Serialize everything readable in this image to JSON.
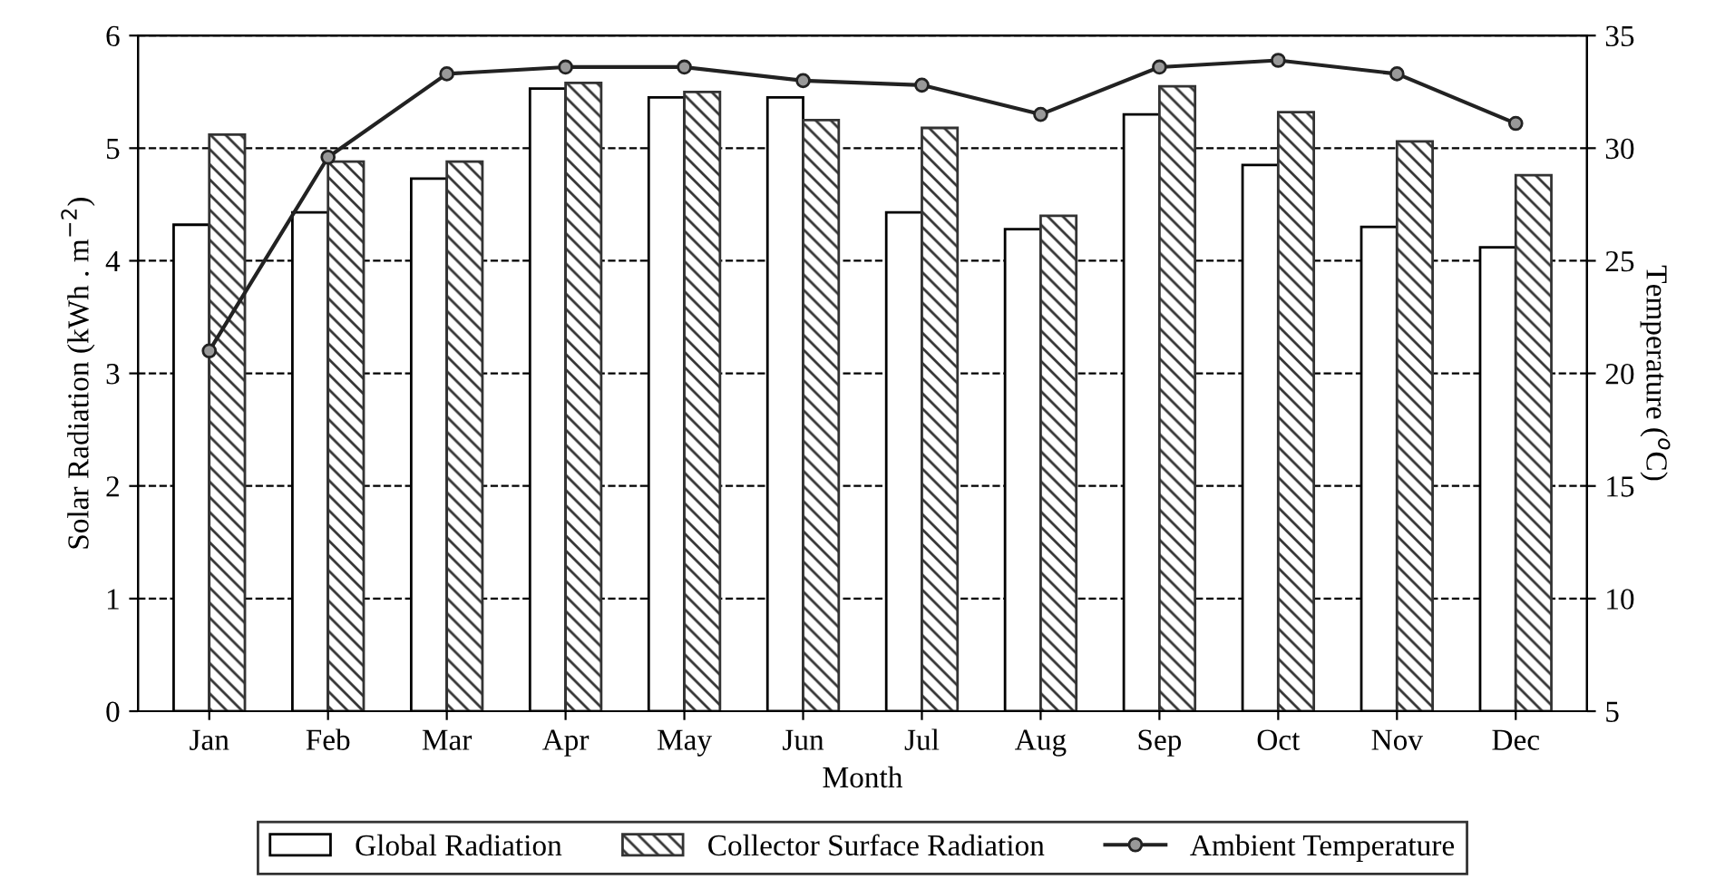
{
  "chart_data": {
    "type": "bar",
    "xlabel": "Month",
    "ylabel": "Solar Radiation (kWh . m$^{−2}$)",
    "y2label": "Temperature ($^{o}$C)",
    "categories": [
      "Jan",
      "Feb",
      "Mar",
      "Apr",
      "May",
      "Jun",
      "Jul",
      "Aug",
      "Sep",
      "Oct",
      "Nov",
      "Dec"
    ],
    "series": [
      {
        "name": "Global Radiation",
        "color": "#ffffff",
        "values": [
          4.32,
          4.43,
          4.73,
          5.53,
          5.45,
          5.45,
          4.43,
          4.28,
          5.3,
          4.85,
          4.3,
          4.12
        ]
      },
      {
        "name": "Collector Surface Radiation",
        "color": "#333333",
        "values": [
          5.12,
          4.88,
          4.88,
          5.58,
          5.5,
          5.25,
          5.18,
          4.4,
          5.55,
          5.32,
          5.06,
          4.76
        ]
      },
      {
        "name": "Ambient Temperature",
        "type": "line",
        "axis": "y2",
        "color": "#222222",
        "marker": "circle",
        "values": [
          21,
          29.6,
          33.3,
          33.6,
          33.6,
          33.0,
          32.8,
          31.5,
          33.6,
          33.9,
          33.3,
          31.1
        ]
      }
    ],
    "ylim": [
      0,
      6
    ],
    "yticks": [
      0,
      1,
      2,
      3,
      4,
      5,
      6
    ],
    "y2lim": [
      5,
      35
    ],
    "y2ticks": [
      5,
      10,
      15,
      20,
      25,
      30,
      35
    ],
    "grid": "y",
    "legend": "bottom"
  }
}
